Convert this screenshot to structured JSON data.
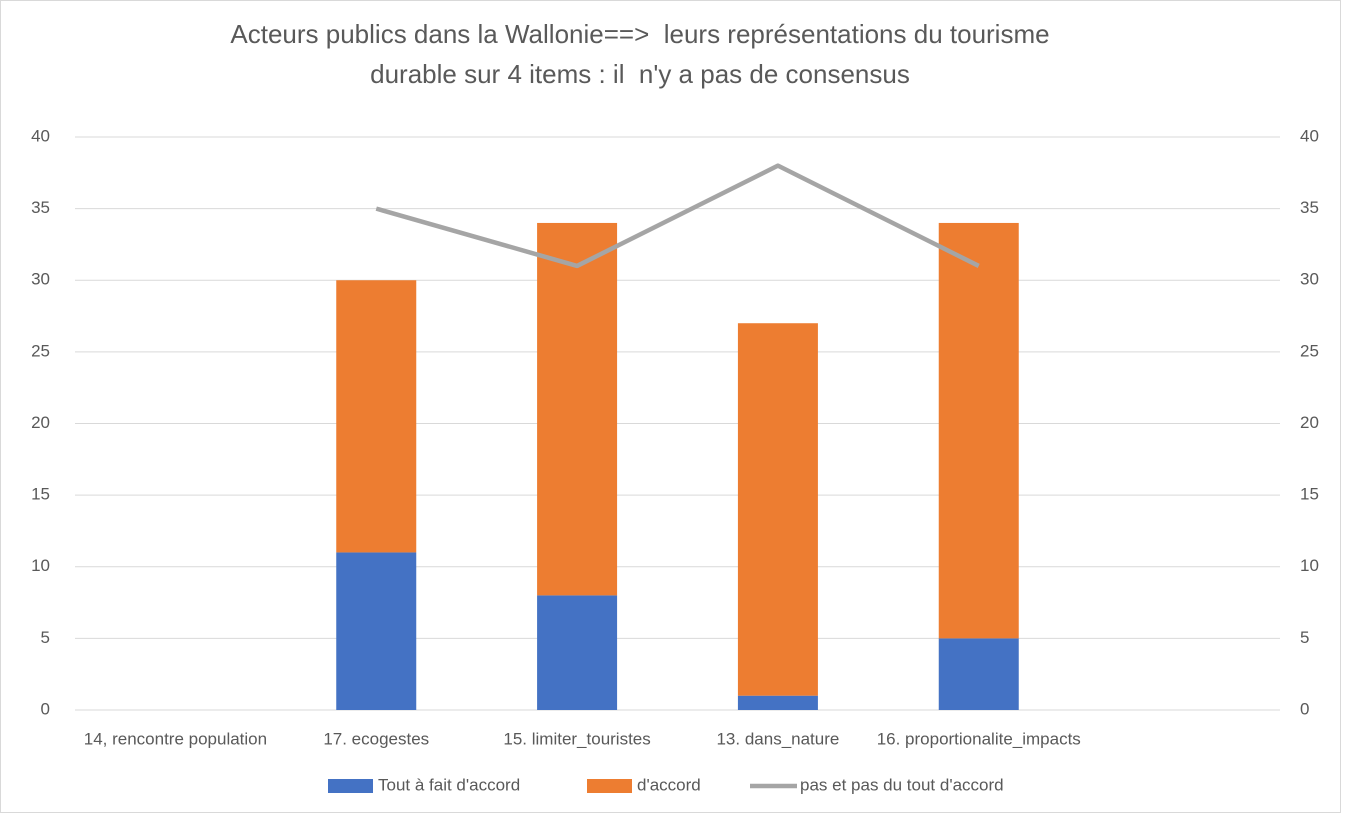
{
  "chart_data": {
    "type": "bar",
    "title": [
      "Acteurs publics dans la Wallonie==>  leurs représentations du tourisme",
      "durable sur 4 items : il  n'y a pas de consensus"
    ],
    "categories": [
      "14, rencontre population",
      "17. ecogestes",
      "15. limiter_touristes",
      "13. dans_nature",
      "16. proportionalite_impacts",
      null
    ],
    "series": [
      {
        "name": "Tout à fait d'accord",
        "color": "#4472c4",
        "type": "bar",
        "values": [
          null,
          11,
          8,
          1,
          5,
          null
        ]
      },
      {
        "name": "d'accord",
        "color": "#ed7d31",
        "type": "bar",
        "values": [
          null,
          19,
          26,
          26,
          29,
          null
        ]
      },
      {
        "name": "pas et pas du tout d'accord",
        "color": "#a5a5a5",
        "type": "line",
        "axis": "y2",
        "values": [
          null,
          35,
          31,
          38,
          31,
          null
        ]
      }
    ],
    "stacked": true,
    "ylim": [
      0,
      40
    ],
    "yticks": [
      0,
      5,
      10,
      15,
      20,
      25,
      30,
      35,
      40
    ],
    "y2lim": [
      0,
      40
    ],
    "y2ticks": [
      0,
      5,
      10,
      15,
      20,
      25,
      30,
      35,
      40
    ],
    "grid": true,
    "legend": "bottom"
  }
}
